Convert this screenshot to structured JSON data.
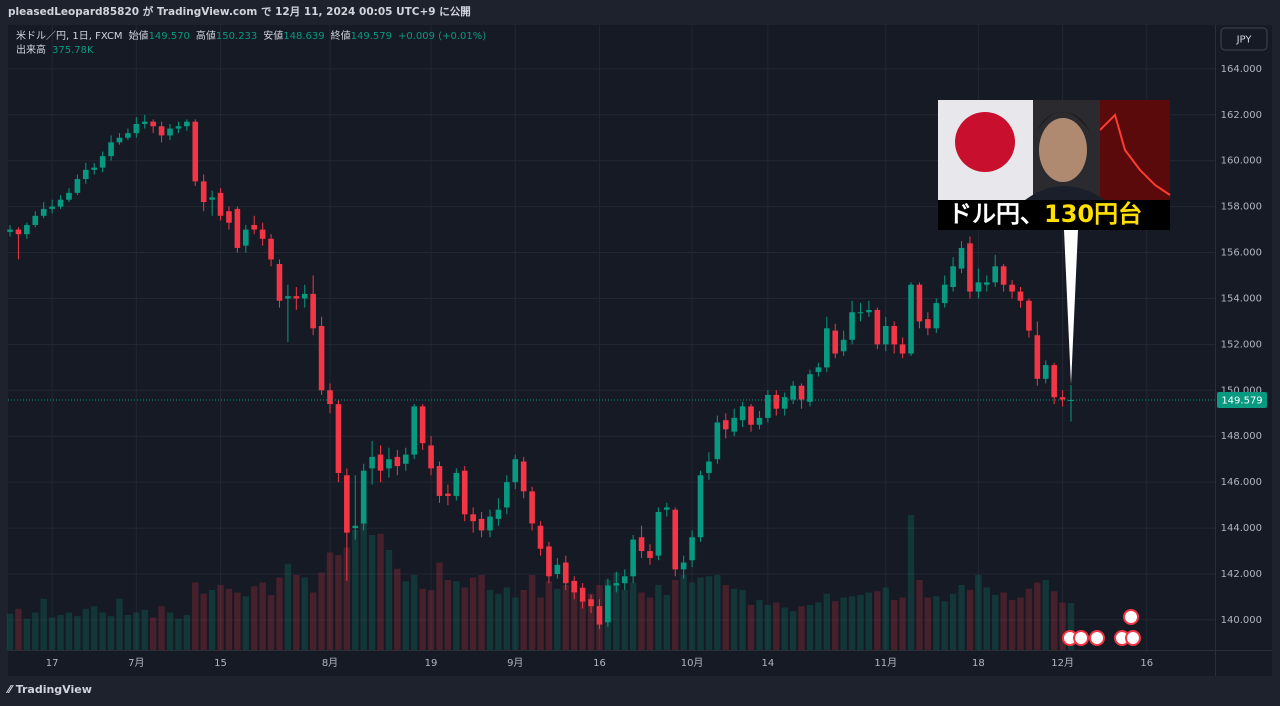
{
  "header": "pleasedLeopard85820 が TradingView.com で 12月 11, 2024 00:05 UTC+9 に公開",
  "footer": "TradingView",
  "thumbnail": {
    "caption": "ドル円、",
    "highlight": "130円台"
  },
  "chart_data": {
    "type": "candlestick",
    "title": "米ドル／円, 1日, FXCM",
    "ohlc_names": [
      "始値",
      "高値",
      "安値",
      "終値"
    ],
    "ohlc_value_labels": [
      "149.570",
      "150.233",
      "148.639",
      "149.579"
    ],
    "change_label": "+0.009 (+0.01%)",
    "volume_name": "出来高",
    "volume_label": "375.78K",
    "currency": "JPY",
    "up_color": "#089981",
    "down_color": "#f23645",
    "grid": true,
    "open": [
      156.9,
      157.0,
      156.8,
      157.2,
      157.6,
      157.9,
      158.0,
      158.3,
      158.6,
      159.2,
      159.6,
      159.7,
      160.2,
      160.8,
      161.0,
      161.2,
      161.6,
      161.7,
      161.5,
      161.1,
      161.4,
      161.5,
      161.7,
      159.1,
      158.3,
      158.6,
      157.8,
      157.9,
      156.3,
      157.2,
      157.0,
      156.6,
      155.5,
      154.0,
      154.1,
      154.0,
      154.2,
      152.8,
      150.0,
      149.4,
      146.3,
      144.0,
      144.2,
      146.6,
      147.2,
      146.6,
      147.1,
      146.8,
      147.2,
      149.3,
      147.6,
      146.7,
      145.5,
      145.4,
      146.5,
      144.6,
      144.4,
      143.9,
      144.4,
      144.9,
      146.0,
      146.9,
      145.6,
      144.1,
      143.2,
      142.0,
      142.5,
      141.7,
      141.4,
      140.9,
      140.6,
      139.9,
      141.5,
      141.6,
      141.9,
      143.6,
      143.0,
      142.8,
      144.8,
      144.8,
      142.2,
      142.6,
      143.6,
      146.4,
      147.0,
      148.7,
      148.2,
      148.7,
      149.3,
      148.5,
      148.8,
      149.8,
      149.2,
      149.6,
      150.2,
      149.5,
      150.8,
      151.0,
      152.6,
      151.7,
      152.2,
      153.4,
      153.4,
      153.5,
      152.0,
      152.8,
      152.0,
      151.6,
      154.6,
      153.1,
      152.7,
      153.8,
      154.5,
      155.3,
      156.4,
      154.3,
      154.6,
      154.7,
      155.4,
      154.6,
      154.3,
      153.9,
      152.4,
      150.5,
      151.1,
      149.7,
      149.57
    ],
    "high": [
      157.2,
      157.1,
      157.3,
      157.8,
      158.2,
      158.3,
      158.5,
      158.8,
      159.4,
      159.9,
      159.9,
      160.4,
      161.1,
      161.2,
      161.4,
      161.9,
      162.0,
      161.8,
      161.7,
      161.6,
      161.7,
      161.8,
      161.8,
      159.4,
      158.7,
      158.8,
      158.0,
      158.0,
      157.2,
      157.6,
      157.3,
      156.8,
      155.7,
      154.6,
      154.5,
      154.6,
      155.0,
      153.2,
      150.3,
      149.6,
      146.6,
      146.3,
      146.8,
      147.8,
      147.6,
      147.5,
      147.4,
      147.5,
      149.4,
      149.4,
      148.0,
      146.9,
      145.9,
      146.6,
      146.7,
      144.9,
      144.7,
      144.8,
      145.3,
      146.3,
      147.2,
      147.1,
      145.8,
      144.3,
      143.4,
      142.7,
      142.8,
      141.9,
      141.6,
      141.1,
      140.9,
      141.8,
      142.1,
      142.2,
      143.7,
      144.1,
      143.3,
      144.9,
      145.1,
      144.9,
      142.8,
      143.9,
      146.5,
      147.3,
      148.9,
      149.0,
      149.2,
      149.5,
      149.4,
      149.1,
      150.0,
      150.0,
      149.9,
      150.4,
      150.3,
      150.9,
      151.2,
      153.2,
      152.9,
      152.6,
      153.9,
      153.8,
      153.9,
      153.6,
      153.2,
      153.0,
      152.3,
      154.7,
      154.7,
      153.4,
      154.0,
      155.0,
      155.8,
      156.5,
      156.7,
      155.3,
      155.0,
      155.9,
      155.5,
      154.8,
      154.5,
      154.0,
      153.0,
      151.3,
      151.2,
      150.0,
      150.233
    ],
    "low": [
      156.7,
      155.7,
      156.6,
      157.1,
      157.5,
      157.7,
      157.9,
      158.2,
      158.5,
      159.0,
      159.4,
      159.5,
      160.0,
      160.7,
      160.9,
      161.0,
      161.4,
      161.2,
      160.8,
      160.9,
      161.2,
      161.3,
      158.9,
      157.8,
      157.6,
      157.4,
      157.0,
      156.0,
      156.0,
      156.8,
      156.3,
      155.4,
      153.6,
      152.1,
      153.5,
      153.6,
      152.4,
      149.8,
      149.0,
      146.0,
      141.7,
      143.5,
      143.9,
      145.9,
      146.0,
      146.2,
      146.3,
      146.5,
      147.0,
      147.4,
      146.3,
      145.1,
      145.0,
      145.2,
      144.3,
      143.8,
      143.6,
      143.6,
      144.1,
      144.6,
      145.7,
      145.3,
      143.9,
      142.8,
      141.6,
      141.8,
      141.3,
      140.9,
      140.5,
      140.3,
      139.6,
      139.7,
      141.2,
      141.3,
      141.6,
      142.7,
      142.4,
      142.6,
      144.5,
      141.9,
      141.8,
      142.3,
      143.4,
      146.1,
      146.8,
      147.9,
      148.0,
      148.4,
      148.2,
      148.3,
      148.6,
      148.9,
      148.9,
      149.4,
      149.2,
      149.3,
      150.6,
      150.8,
      151.4,
      151.5,
      152.0,
      153.0,
      153.2,
      151.8,
      151.7,
      151.6,
      151.4,
      151.5,
      152.7,
      152.4,
      152.5,
      153.6,
      154.3,
      155.1,
      154.0,
      154.0,
      154.3,
      154.5,
      154.3,
      154.0,
      153.6,
      152.3,
      150.2,
      150.3,
      149.4,
      149.3,
      148.639
    ],
    "close": [
      157.0,
      156.8,
      157.2,
      157.6,
      157.9,
      158.0,
      158.3,
      158.6,
      159.2,
      159.6,
      159.7,
      160.2,
      160.8,
      161.0,
      161.2,
      161.6,
      161.7,
      161.5,
      161.1,
      161.4,
      161.5,
      161.7,
      159.1,
      158.2,
      158.4,
      157.6,
      157.3,
      156.2,
      157.0,
      157.0,
      156.6,
      155.7,
      153.9,
      154.1,
      154.0,
      154.2,
      152.7,
      150.0,
      149.4,
      146.4,
      143.8,
      144.1,
      146.5,
      147.1,
      146.5,
      147.0,
      146.7,
      147.2,
      149.3,
      147.7,
      146.6,
      145.4,
      145.4,
      146.4,
      144.6,
      144.3,
      143.9,
      144.5,
      144.8,
      146.0,
      147.0,
      145.6,
      144.2,
      143.1,
      141.9,
      142.4,
      141.6,
      141.2,
      140.8,
      140.6,
      139.8,
      141.5,
      141.6,
      141.9,
      143.5,
      143.0,
      142.7,
      144.7,
      144.9,
      142.2,
      142.5,
      143.6,
      146.3,
      146.9,
      148.6,
      148.3,
      148.8,
      149.3,
      148.5,
      148.8,
      149.8,
      149.2,
      149.7,
      150.2,
      149.6,
      150.7,
      151.0,
      152.7,
      151.6,
      152.2,
      153.4,
      153.4,
      153.5,
      152.0,
      152.8,
      152.0,
      151.6,
      154.6,
      153.0,
      152.7,
      153.8,
      154.6,
      155.4,
      156.2,
      154.3,
      154.7,
      154.7,
      155.4,
      154.6,
      154.3,
      153.9,
      152.6,
      150.5,
      151.1,
      149.7,
      149.6,
      149.579
    ],
    "volume": [
      290000,
      330000,
      250000,
      300000,
      410000,
      260000,
      280000,
      300000,
      270000,
      330000,
      350000,
      300000,
      270000,
      410000,
      280000,
      300000,
      320000,
      260000,
      350000,
      300000,
      250000,
      280000,
      540000,
      450000,
      480000,
      520000,
      490000,
      460000,
      430000,
      510000,
      540000,
      440000,
      580000,
      690000,
      600000,
      580000,
      460000,
      620000,
      780000,
      760000,
      820000,
      960000,
      1030000,
      920000,
      930000,
      800000,
      650000,
      550000,
      600000,
      490000,
      480000,
      700000,
      560000,
      550000,
      500000,
      580000,
      600000,
      480000,
      450000,
      500000,
      420000,
      480000,
      600000,
      420000,
      550000,
      490000,
      520000,
      480000,
      400000,
      450000,
      520000,
      560000,
      620000,
      480000,
      540000,
      460000,
      420000,
      520000,
      440000,
      560000,
      600000,
      540000,
      580000,
      590000,
      600000,
      520000,
      490000,
      480000,
      360000,
      400000,
      360000,
      380000,
      340000,
      310000,
      350000,
      360000,
      380000,
      450000,
      390000,
      420000,
      430000,
      440000,
      460000,
      470000,
      500000,
      400000,
      420000,
      1080000,
      560000,
      420000,
      430000,
      390000,
      450000,
      520000,
      480000,
      600000,
      500000,
      440000,
      460000,
      400000,
      420000,
      490000,
      540000,
      560000,
      470000,
      380000,
      375780
    ],
    "ylim": [
      138.69,
      165.91
    ],
    "yticks": [
      {
        "value": 140,
        "label": "140.000"
      },
      {
        "value": 142,
        "label": "142.000"
      },
      {
        "value": 144,
        "label": "144.000"
      },
      {
        "value": 146,
        "label": "146.000"
      },
      {
        "value": 148,
        "label": "148.000"
      },
      {
        "value": 150,
        "label": "150.000"
      },
      {
        "value": 152,
        "label": "152.000"
      },
      {
        "value": 154,
        "label": "154.000"
      },
      {
        "value": 156,
        "label": "156.000"
      },
      {
        "value": 158,
        "label": "158.000"
      },
      {
        "value": 160,
        "label": "160.000"
      },
      {
        "value": 162,
        "label": "162.000"
      },
      {
        "value": 164,
        "label": "164.000"
      }
    ],
    "xlim": [
      -0.24,
      143.1
    ],
    "xticks": [
      {
        "value": 5,
        "label": "17"
      },
      {
        "value": 15,
        "label": "7月"
      },
      {
        "value": 25,
        "label": "15"
      },
      {
        "value": 38,
        "label": "8月"
      },
      {
        "value": 50,
        "label": "19"
      },
      {
        "value": 60,
        "label": "9月"
      },
      {
        "value": 70,
        "label": "16"
      },
      {
        "value": 81,
        "label": "10月"
      },
      {
        "value": 90,
        "label": "14"
      },
      {
        "value": 104,
        "label": "11月"
      },
      {
        "value": 115,
        "label": "18"
      },
      {
        "value": 125,
        "label": "12月"
      },
      {
        "value": 135,
        "label": "16"
      }
    ]
  }
}
